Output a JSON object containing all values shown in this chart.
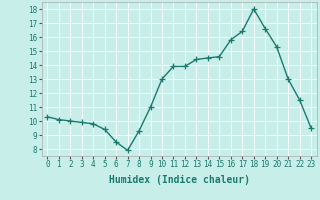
{
  "x": [
    0,
    1,
    2,
    3,
    4,
    5,
    6,
    7,
    8,
    9,
    10,
    11,
    12,
    13,
    14,
    15,
    16,
    17,
    18,
    19,
    20,
    21,
    22,
    23
  ],
  "y": [
    10.3,
    10.1,
    10.0,
    9.9,
    9.8,
    9.4,
    8.5,
    7.9,
    9.3,
    11.0,
    13.0,
    13.9,
    13.9,
    14.4,
    14.5,
    14.6,
    15.8,
    16.4,
    18.0,
    16.6,
    15.3,
    13.0,
    11.5,
    9.5
  ],
  "line_color": "#1a7a6e",
  "bg_color": "#c8eeea",
  "grid_color": "#ffffff",
  "xlabel": "Humidex (Indice chaleur)",
  "ylim": [
    7.5,
    18.5
  ],
  "xlim": [
    -0.5,
    23.5
  ],
  "yticks": [
    8,
    9,
    10,
    11,
    12,
    13,
    14,
    15,
    16,
    17,
    18
  ],
  "xticks": [
    0,
    1,
    2,
    3,
    4,
    5,
    6,
    7,
    8,
    9,
    10,
    11,
    12,
    13,
    14,
    15,
    16,
    17,
    18,
    19,
    20,
    21,
    22,
    23
  ],
  "marker": "+",
  "markersize": 4,
  "linewidth": 1.0,
  "xlabel_fontsize": 7,
  "tick_fontsize": 5.5
}
